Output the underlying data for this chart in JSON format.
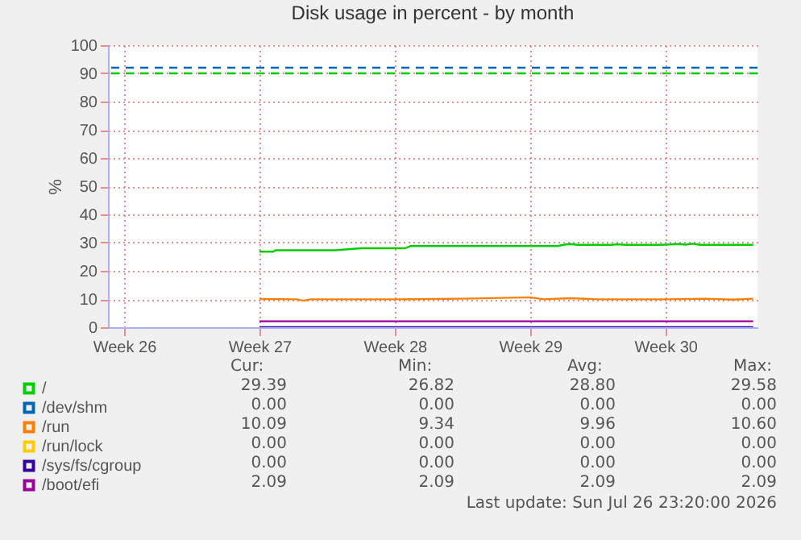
{
  "chart_data": {
    "type": "line",
    "title": "Disk usage in percent - by month",
    "ylabel": "%",
    "xlim": [
      "2026-06-23T09:00",
      "2026-07-26T23:20"
    ],
    "xticks": [
      {
        "value": "2026-06-24T05:00",
        "label": "Week 26"
      },
      {
        "value": "2026-07-01T05:00",
        "label": "Week 27"
      },
      {
        "value": "2026-07-08T05:00",
        "label": "Week 28"
      },
      {
        "value": "2026-07-15T05:00",
        "label": "Week 29"
      },
      {
        "value": "2026-07-22T05:00",
        "label": "Week 30"
      }
    ],
    "ylim": [
      0,
      100
    ],
    "yticks": [
      0,
      10,
      20,
      30,
      40,
      50,
      60,
      70,
      80,
      90,
      100
    ],
    "grid": true,
    "legend": "bottom",
    "line_style": "solid",
    "series": [
      {
        "name": "/",
        "color": "#00cc00",
        "x": [
          "2026-07-01T05:00",
          "2026-07-01T22:00",
          "2026-07-02T01:00",
          "2026-07-05T03:00",
          "2026-07-06T11:00",
          "2026-07-08T18:00",
          "2026-07-09T01:00",
          "2026-07-16T15:00",
          "2026-07-17T00:00",
          "2026-07-17T07:00",
          "2026-07-17T16:00",
          "2026-07-19T10:00",
          "2026-07-19T18:00",
          "2026-07-20T03:00",
          "2026-07-21T21:00",
          "2026-07-22T05:00",
          "2026-07-22T22:00",
          "2026-07-23T06:00",
          "2026-07-23T15:00",
          "2026-07-24T00:00",
          "2026-07-26T18:00"
        ],
        "values": [
          26.8,
          26.8,
          27.3,
          27.3,
          28.0,
          28.0,
          28.8,
          28.8,
          29.3,
          29.5,
          29.2,
          29.2,
          29.4,
          29.2,
          29.2,
          29.3,
          29.5,
          29.3,
          29.6,
          29.2,
          29.2
        ]
      },
      {
        "name": "/dev/shm",
        "color": "#0066b3"
      },
      {
        "name": "/run",
        "color": "#ff8000",
        "x": [
          "2026-07-01T05:00",
          "2026-07-03T03:00",
          "2026-07-03T12:00",
          "2026-07-03T20:00",
          "2026-07-08T05:00",
          "2026-07-11T17:00",
          "2026-07-15T05:00",
          "2026-07-15T22:00",
          "2026-07-17T07:00",
          "2026-07-18T17:00",
          "2026-07-22T05:00",
          "2026-07-24T07:00",
          "2026-07-25T17:00",
          "2026-07-26T18:00"
        ],
        "values": [
          10.0,
          9.9,
          9.4,
          9.9,
          9.9,
          10.1,
          10.6,
          9.9,
          10.3,
          9.9,
          9.9,
          10.1,
          9.8,
          10.1
        ]
      },
      {
        "name": "/run/lock",
        "color": "#ffcc00"
      },
      {
        "name": "/sys/fs/cgroup",
        "color": "#330099",
        "x": [
          "2026-07-01T05:00",
          "2026-07-26T18:00"
        ],
        "values": [
          0,
          0
        ]
      },
      {
        "name": "/boot/efi",
        "color": "#990099",
        "x": [
          "2026-07-01T05:00",
          "2026-07-26T18:00"
        ],
        "values": [
          2.1,
          2.1
        ]
      }
    ],
    "ref_lines": [
      {
        "axis": "y",
        "value": 92,
        "color": "#0066b3",
        "line_style": "dashed"
      },
      {
        "axis": "y",
        "value": 90,
        "color": "#00cc00",
        "line_style": "dashed"
      }
    ],
    "annotations": [
      "Cur:",
      "Min:",
      "Avg:",
      "Max:",
      "29.39",
      "26.82",
      "28.80",
      "29.58",
      "0.00",
      "0.00",
      "0.00",
      "0.00",
      "10.09",
      "9.34",
      "9.96",
      "10.60",
      "0.00",
      "0.00",
      "0.00",
      "0.00",
      "0.00",
      "0.00",
      "0.00",
      "0.00",
      "2.09",
      "2.09",
      "2.09",
      "2.09",
      "Last update: Sun Jul 26 23:20:00 2026"
    ]
  }
}
